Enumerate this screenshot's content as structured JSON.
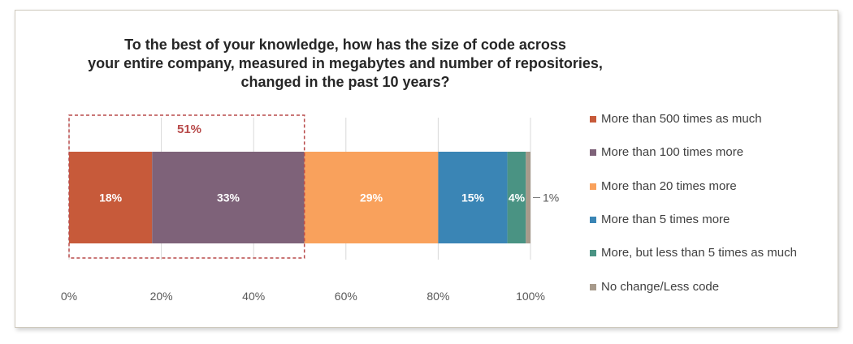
{
  "chart_data": {
    "type": "bar",
    "orientation": "horizontal",
    "stacked": true,
    "title_lines": [
      "To the best of your knowledge, how has the size of code across",
      "your entire company, measured in megabytes and number of repositories,",
      "changed in the past 10 years?"
    ],
    "xlim": [
      0,
      100
    ],
    "x_ticks": [
      "0%",
      "20%",
      "40%",
      "60%",
      "80%",
      "100%"
    ],
    "grid": true,
    "legend_position": "right",
    "series": [
      {
        "name": "More than 500 times as much",
        "value": 18,
        "label": "18%",
        "color": "#C75A3A"
      },
      {
        "name": "More than 100 times more",
        "value": 33,
        "label": "33%",
        "color": "#7E6279"
      },
      {
        "name": "More than 20 times more",
        "value": 29,
        "label": "29%",
        "color": "#F9A15C"
      },
      {
        "name": "More than 5 times more",
        "value": 15,
        "label": "15%",
        "color": "#3A85B5"
      },
      {
        "name": "More, but less than 5 times as much",
        "value": 4,
        "label": "4%",
        "color": "#4A9383"
      },
      {
        "name": "No change/Less code",
        "value": 1,
        "label": "1%",
        "color": "#A79A8B"
      }
    ],
    "highlight": {
      "label": "51%",
      "from": 0,
      "to": 51,
      "color": "#B84A4A"
    }
  }
}
